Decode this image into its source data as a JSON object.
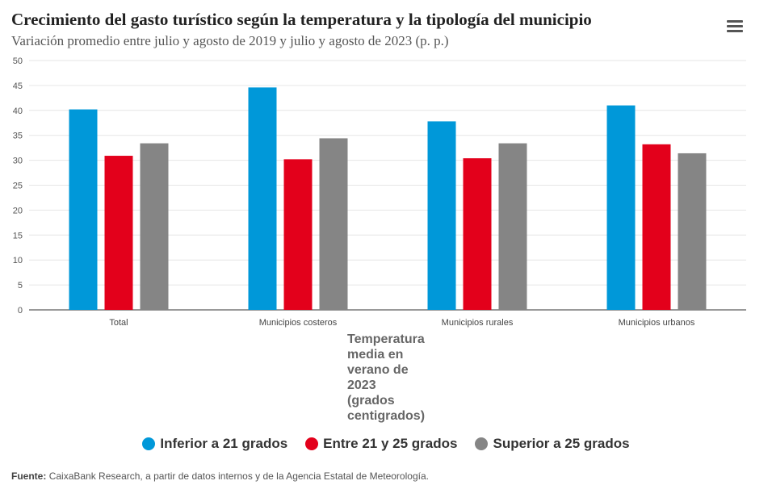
{
  "menu_icon": "hamburger-menu-icon",
  "chart_data": {
    "type": "bar",
    "title": "Crecimiento del gasto turístico según la temperatura y la tipología del municipio",
    "subtitle": "Variación promedio entre julio y agosto de 2019 y julio y agosto de 2023 (p. p.)",
    "categories": [
      "Total",
      "Municipios costeros",
      "Municipios rurales",
      "Municipios urbanos"
    ],
    "series": [
      {
        "name": "Inferior a 21 grados",
        "color": "#0098d9",
        "values": [
          40.2,
          44.6,
          37.8,
          41.0
        ]
      },
      {
        "name": "Entre 21 y 25 grados",
        "color": "#e3001b",
        "values": [
          30.9,
          30.2,
          30.4,
          33.2
        ]
      },
      {
        "name": "Superior a 25 grados",
        "color": "#858585",
        "values": [
          33.4,
          34.4,
          33.4,
          31.4
        ]
      }
    ],
    "xlabel": "Temperatura media en verano de 2023 (grados centigrados)",
    "ylabel": "",
    "ylim": [
      0,
      50
    ],
    "yticks": [
      "0",
      "5",
      "10",
      "15",
      "20",
      "25",
      "30",
      "35",
      "40",
      "45",
      "50"
    ],
    "grid": true,
    "legend_position": "bottom"
  },
  "source": {
    "label": "Fuente:",
    "text": "CaixaBank Research, a partir de datos internos y de la Agencia Estatal de Meteorología."
  }
}
